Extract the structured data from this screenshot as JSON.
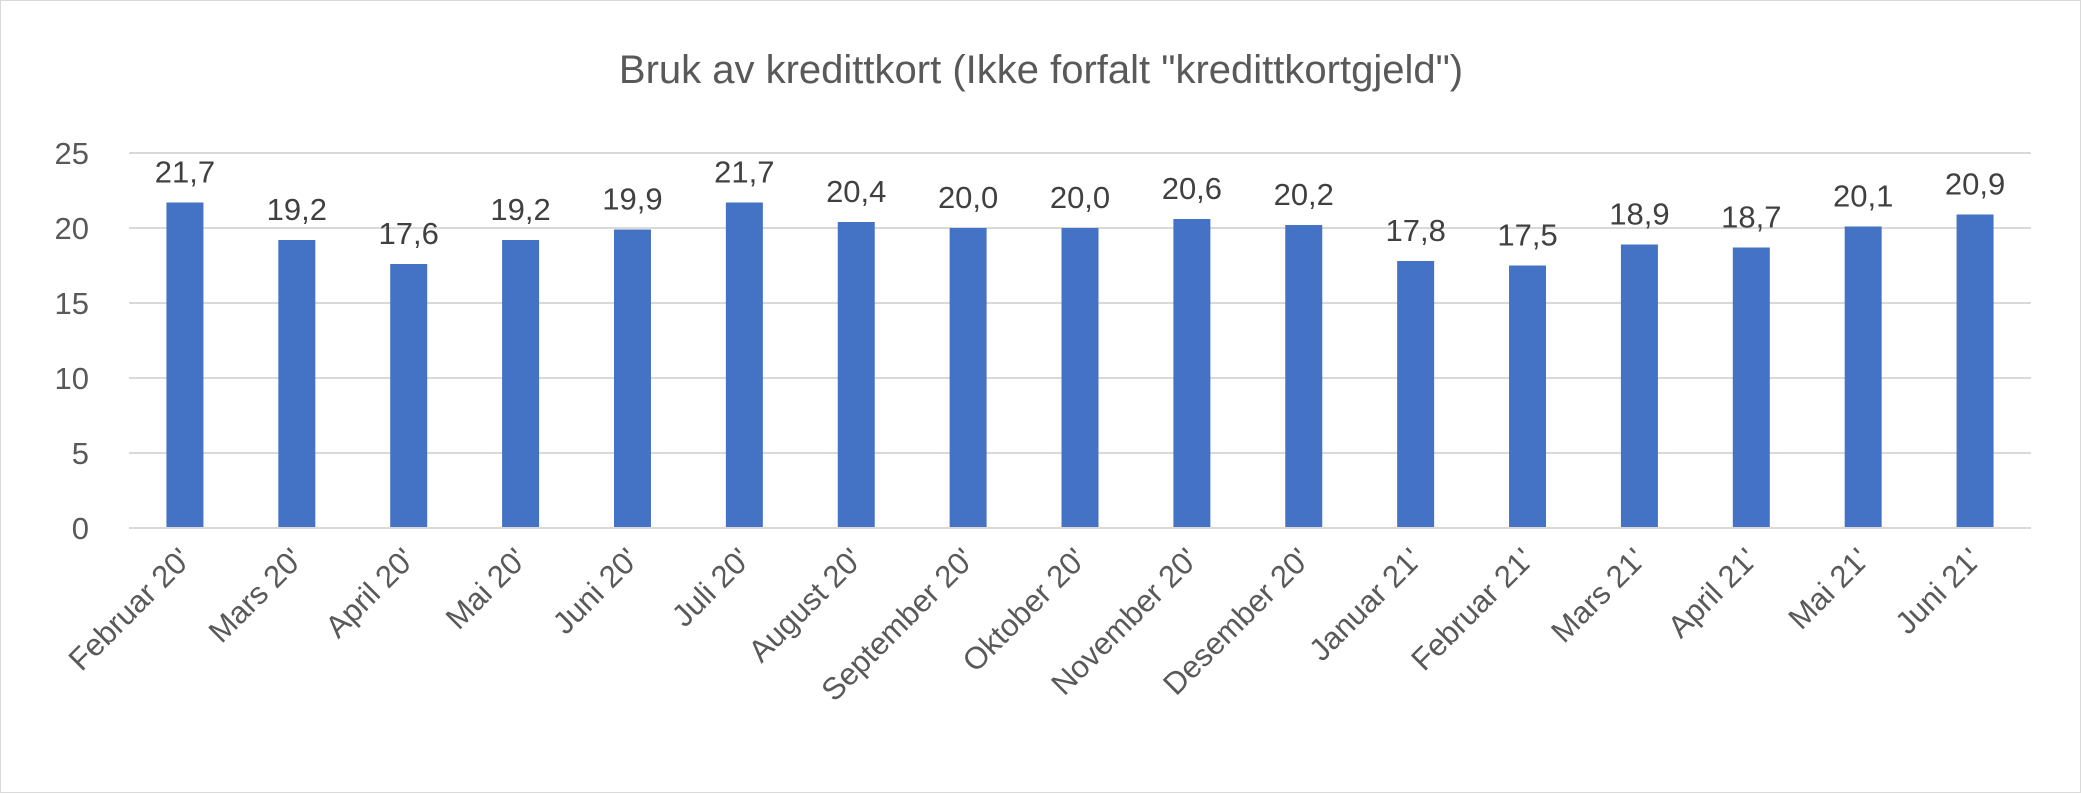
{
  "chart_data": {
    "type": "bar",
    "title": "Bruk av kredittkort (Ikke forfalt \"kredittkortgjeld\")",
    "xlabel": "",
    "ylabel": "",
    "categories": [
      "Februar 20'",
      "Mars 20'",
      "April 20'",
      "Mai 20'",
      "Juni 20'",
      "Juli 20'",
      "August 20'",
      "September 20'",
      "Oktober 20'",
      "November 20'",
      "Desember 20'",
      "Januar 21'",
      "Februar 21'",
      "Mars 21'",
      "April 21'",
      "Mai 21'",
      "Juni 21'"
    ],
    "series": [
      {
        "values": [
          21.7,
          19.2,
          17.6,
          19.2,
          19.9,
          21.7,
          20.4,
          20.0,
          20.0,
          20.6,
          20.2,
          17.8,
          17.5,
          18.9,
          18.7,
          20.1,
          20.9
        ],
        "data_labels": [
          "21,7",
          "19,2",
          "17,6",
          "19,2",
          "19,9",
          "21,7",
          "20,4",
          "20,0",
          "20,0",
          "20,6",
          "20,2",
          "17,8",
          "17,5",
          "18,9",
          "18,7",
          "20,1",
          "20,9"
        ],
        "color": "#4472c4"
      }
    ],
    "ylim": [
      0,
      25
    ],
    "yticks": [
      0,
      5,
      10,
      15,
      20,
      25
    ],
    "ytick_labels": [
      "0",
      "5",
      "10",
      "15",
      "20",
      "25"
    ],
    "grid": true,
    "gridline_color": "#d9d9d9",
    "legend": "none"
  }
}
